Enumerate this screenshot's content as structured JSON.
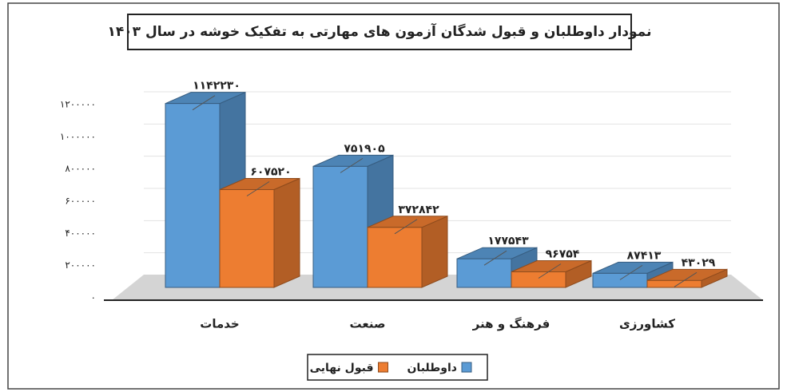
{
  "chart_data": {
    "type": "bar3d",
    "title": "نمودار داوطلبان و قبول شدگان آزمون های مهارتی  به تفکیک خوشه در سال ۱۴۰۳",
    "categories": [
      "خدمات",
      "صنعت",
      "فرهنگ و هنر",
      "کشاورزی"
    ],
    "series": [
      {
        "name": "داوطلبان",
        "color": "#5b9bd5",
        "values": [
          1142230,
          751905,
          177543,
          87413
        ],
        "value_labels": [
          "۱۱۴۲۲۳۰",
          "۷۵۱۹۰۵",
          "۱۷۷۵۴۳",
          "۸۷۴۱۳"
        ]
      },
      {
        "name": "قبول نهایی",
        "color": "#ed7d31",
        "values": [
          607520,
          372842,
          96754,
          43029
        ],
        "value_labels": [
          "۶۰۷۵۲۰",
          "۳۷۲۸۴۲",
          "۹۶۷۵۴",
          "۴۳۰۲۹"
        ]
      }
    ],
    "ylim": [
      0,
      1200000
    ],
    "yticks": [
      {
        "value": 0,
        "label": "۰"
      },
      {
        "value": 200000,
        "label": "۲۰۰۰۰۰"
      },
      {
        "value": 400000,
        "label": "۴۰۰۰۰۰"
      },
      {
        "value": 600000,
        "label": "۶۰۰۰۰۰"
      },
      {
        "value": 800000,
        "label": "۸۰۰۰۰۰"
      },
      {
        "value": 1000000,
        "label": "۱۰۰۰۰۰۰"
      },
      {
        "value": 1200000,
        "label": "۱۲۰۰۰۰۰"
      }
    ],
    "grid": true,
    "legend": "bottom"
  }
}
